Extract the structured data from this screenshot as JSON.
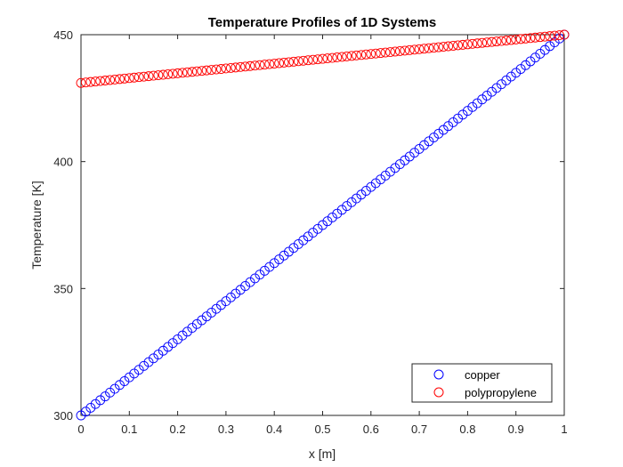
{
  "chart_data": {
    "type": "scatter",
    "title": "Temperature Profiles of 1D Systems",
    "xlabel": "x [m]",
    "ylabel": "Temperature [K]",
    "xlim": [
      0,
      1
    ],
    "ylim": [
      300,
      450
    ],
    "xticks": [
      0,
      0.1,
      0.2,
      0.3,
      0.4,
      0.5,
      0.6,
      0.7,
      0.8,
      0.9,
      1
    ],
    "xtick_labels": [
      "0",
      "0.1",
      "0.2",
      "0.3",
      "0.4",
      "0.5",
      "0.6",
      "0.7",
      "0.8",
      "0.9",
      "1"
    ],
    "yticks": [
      300,
      350,
      400,
      450
    ],
    "ytick_labels": [
      "300",
      "350",
      "400",
      "450"
    ],
    "grid": false,
    "legend_position": "bottom-right",
    "marker": "open-circle",
    "series": [
      {
        "name": "copper",
        "color": "#0000ff",
        "x_start": 0,
        "x_end": 1,
        "n_points": 101,
        "y_start": 300,
        "y_end": 450
      },
      {
        "name": "polypropylene",
        "color": "#ff0000",
        "x_start": 0,
        "x_end": 1,
        "n_points": 101,
        "y_start": 431,
        "y_end": 450
      }
    ]
  }
}
